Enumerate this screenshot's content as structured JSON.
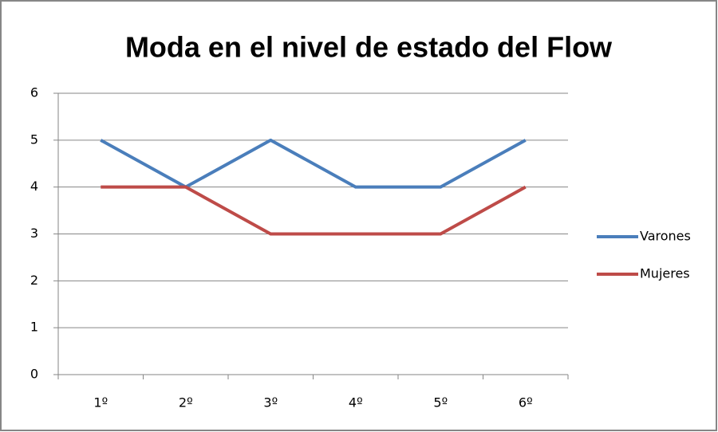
{
  "chart_data": {
    "type": "line",
    "title": "Moda en el nivel de estado del Flow",
    "categories": [
      "1º",
      "2º",
      "3º",
      "4º",
      "5º",
      "6º"
    ],
    "series": [
      {
        "name": "Varones",
        "color": "#4a7ebb",
        "values": [
          5,
          4,
          5,
          4,
          4,
          5
        ]
      },
      {
        "name": "Mujeres",
        "color": "#be4b48",
        "values": [
          4,
          4,
          3,
          3,
          3,
          4
        ]
      }
    ],
    "ylim": [
      0,
      6
    ],
    "yticks": [
      0,
      1,
      2,
      3,
      4,
      5,
      6
    ],
    "grid": true,
    "legend": "right"
  }
}
